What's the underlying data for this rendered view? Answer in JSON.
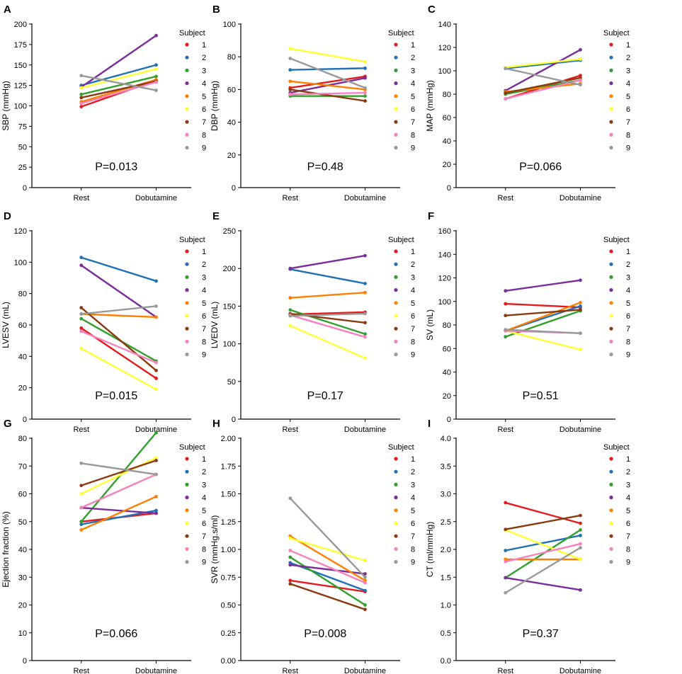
{
  "legend_title": "Subject",
  "x_categories": [
    "Rest",
    "Dobutamine"
  ],
  "subjects": [
    "1",
    "2",
    "3",
    "4",
    "5",
    "6",
    "7",
    "8",
    "9"
  ],
  "colors": [
    "#e41a1c",
    "#2171b5",
    "#33a02c",
    "#7b2d9b",
    "#ff7f00",
    "#ffff33",
    "#8b3a0f",
    "#f781bf",
    "#999999"
  ],
  "chart_data": [
    {
      "type": "line",
      "letter": "A",
      "ylabel": "SBP (mmHg)",
      "ylim": [
        0,
        200
      ],
      "yticks": [
        "0",
        "25",
        "50",
        "75",
        "100",
        "125",
        "150",
        "175",
        "200"
      ],
      "pvalue": "P=0.013",
      "categories": [
        "Rest",
        "Dobutamine"
      ],
      "series": [
        [
          99,
          131
        ],
        [
          125,
          150
        ],
        [
          114,
          136
        ],
        [
          123,
          186
        ],
        [
          105,
          132
        ],
        [
          122,
          145
        ],
        [
          110,
          130
        ],
        [
          103,
          129
        ],
        [
          137,
          119
        ]
      ]
    },
    {
      "type": "line",
      "letter": "B",
      "ylabel": "DBP (mmHg)",
      "ylim": [
        0,
        100
      ],
      "yticks": [
        "0",
        "20",
        "40",
        "60",
        "80",
        "100"
      ],
      "pvalue": "P=0.48",
      "categories": [
        "Rest",
        "Dobutamine"
      ],
      "series": [
        [
          61,
          68
        ],
        [
          72,
          73
        ],
        [
          56,
          56
        ],
        [
          58,
          67
        ],
        [
          65,
          60
        ],
        [
          85,
          77
        ],
        [
          60,
          53
        ],
        [
          57,
          58
        ],
        [
          79,
          61
        ]
      ]
    },
    {
      "type": "line",
      "letter": "C",
      "ylabel": "MAP (mmHg)",
      "ylim": [
        0,
        140
      ],
      "yticks": [
        "0",
        "20",
        "40",
        "60",
        "80",
        "100",
        "120",
        "140"
      ],
      "pvalue": "P=0.066",
      "categories": [
        "Rest",
        "Dobutamine"
      ],
      "series": [
        [
          76,
          96
        ],
        [
          102,
          109
        ],
        [
          80,
          92
        ],
        [
          83,
          118
        ],
        [
          82,
          89
        ],
        [
          103,
          110
        ],
        [
          81,
          94
        ],
        [
          76,
          92
        ],
        [
          102,
          88
        ]
      ]
    },
    {
      "type": "line",
      "letter": "D",
      "ylabel": "LVESV (mL)",
      "ylim": [
        0,
        120
      ],
      "yticks": [
        "0",
        "20",
        "40",
        "60",
        "80",
        "100",
        "120"
      ],
      "pvalue": "P=0.015",
      "categories": [
        "Rest",
        "Dobutamine"
      ],
      "series": [
        [
          58,
          26
        ],
        [
          103,
          88
        ],
        [
          64,
          37
        ],
        [
          98,
          65
        ],
        [
          67,
          65
        ],
        [
          45,
          19
        ],
        [
          71,
          31
        ],
        [
          56,
          36
        ],
        [
          67,
          72
        ]
      ]
    },
    {
      "type": "line",
      "letter": "E",
      "ylabel": "LVEDV (mL)",
      "ylim": [
        0,
        250
      ],
      "yticks": [
        "0",
        "50",
        "100",
        "150",
        "200",
        "250"
      ],
      "pvalue": "P=0.17",
      "categories": [
        "Rest",
        "Dobutamine"
      ],
      "series": [
        [
          139,
          142
        ],
        [
          199,
          180
        ],
        [
          145,
          113
        ],
        [
          200,
          217
        ],
        [
          161,
          168
        ],
        [
          124,
          81
        ],
        [
          140,
          128
        ],
        [
          138,
          109
        ],
        [
          137,
          140
        ]
      ]
    },
    {
      "type": "line",
      "letter": "F",
      "ylabel": "SV (mL)",
      "ylim": [
        0,
        160
      ],
      "yticks": [
        "0",
        "20",
        "40",
        "60",
        "80",
        "100",
        "120",
        "140",
        "160"
      ],
      "pvalue": "P=0.51",
      "categories": [
        "Rest",
        "Dobutamine"
      ],
      "series": [
        [
          98,
          95
        ],
        [
          75,
          96
        ],
        [
          70,
          92
        ],
        [
          109,
          118
        ],
        [
          75,
          99
        ],
        [
          75,
          59
        ],
        [
          88,
          93
        ],
        [
          75,
          73
        ],
        [
          76,
          73
        ]
      ]
    },
    {
      "type": "line",
      "letter": "G",
      "ylabel": "Ejection fraction (%)",
      "ylim": [
        0,
        80
      ],
      "yticks": [
        "0",
        "10",
        "20",
        "30",
        "40",
        "50",
        "60",
        "70",
        "80"
      ],
      "pvalue": "P=0.066",
      "categories": [
        "Rest",
        "Dobutamine"
      ],
      "series": [
        [
          50,
          53
        ],
        [
          49,
          54
        ],
        [
          50,
          82
        ],
        [
          55,
          53
        ],
        [
          47,
          59
        ],
        [
          60,
          73
        ],
        [
          63,
          72
        ],
        [
          55,
          67
        ],
        [
          71,
          67
        ]
      ]
    },
    {
      "type": "line",
      "letter": "H",
      "ylabel": "SVR (mmHg.s/ml)",
      "ylim": [
        0,
        2.0
      ],
      "yticks": [
        "0.00",
        "0.25",
        "0.50",
        "0.75",
        "1.00",
        "1.25",
        "1.50",
        "1.75",
        "2.00"
      ],
      "pvalue": "P=0.008",
      "categories": [
        "Rest",
        "Dobutamine"
      ],
      "series": [
        [
          0.72,
          0.62
        ],
        [
          0.88,
          0.63
        ],
        [
          0.93,
          0.5
        ],
        [
          0.86,
          0.78
        ],
        [
          1.12,
          0.72
        ],
        [
          1.1,
          0.9
        ],
        [
          0.69,
          0.46
        ],
        [
          0.99,
          0.7
        ],
        [
          1.46,
          0.75
        ]
      ]
    },
    {
      "type": "line",
      "letter": "I",
      "ylabel": "CT (ml/mmHg)",
      "ylim": [
        0,
        4.0
      ],
      "yticks": [
        "0.0",
        "0.5",
        "1.0",
        "1.5",
        "2.0",
        "2.5",
        "3.0",
        "3.5",
        "4.0"
      ],
      "pvalue": "P=0.37",
      "categories": [
        "Rest",
        "Dobutamine"
      ],
      "series": [
        [
          2.84,
          2.47
        ],
        [
          1.98,
          2.25
        ],
        [
          1.49,
          2.35
        ],
        [
          1.49,
          1.27
        ],
        [
          1.82,
          1.82
        ],
        [
          2.35,
          1.82
        ],
        [
          2.36,
          2.61
        ],
        [
          1.78,
          2.1
        ],
        [
          1.22,
          2.03
        ]
      ]
    }
  ]
}
